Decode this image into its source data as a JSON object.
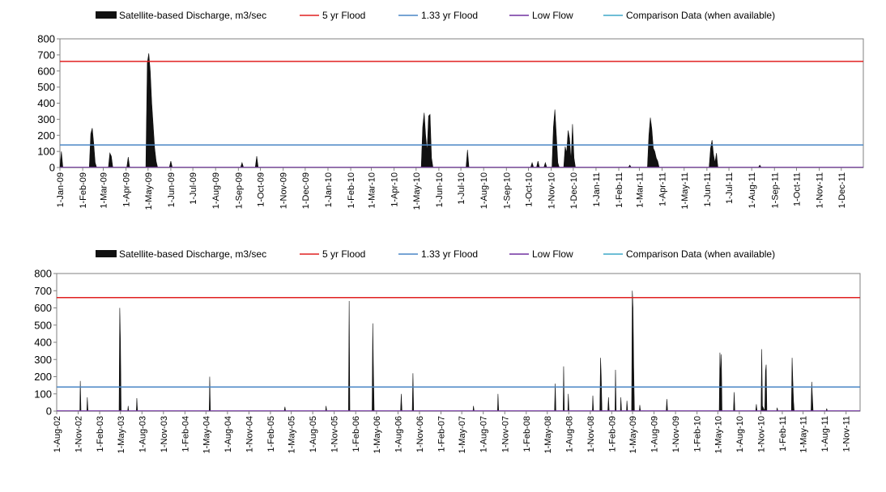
{
  "legend": {
    "discharge": "Satellite-based Discharge, m3/sec",
    "flood5": "5 yr Flood",
    "flood133": "1.33 yr Flood",
    "lowflow": "Low Flow",
    "comparison": "Comparison Data (when available)"
  },
  "colors": {
    "discharge": "#111111",
    "flood5": "#e02020",
    "flood133": "#4a86c5",
    "lowflow": "#7030a0",
    "comparison": "#3fa8c8",
    "axis": "#808080"
  },
  "chart_data": [
    {
      "type": "area",
      "ylim": [
        0,
        800
      ],
      "yticks": [
        0,
        100,
        200,
        300,
        400,
        500,
        600,
        700,
        800
      ],
      "xrange": [
        "2009-01-01",
        "2011-12-31"
      ],
      "xticks": [
        {
          "label": "1-Jan-09",
          "date": "2009-01-01"
        },
        {
          "label": "1-Feb-09",
          "date": "2009-02-01"
        },
        {
          "label": "1-Mar-09",
          "date": "2009-03-01"
        },
        {
          "label": "1-Apr-09",
          "date": "2009-04-01"
        },
        {
          "label": "1-May-09",
          "date": "2009-05-01"
        },
        {
          "label": "1-Jun-09",
          "date": "2009-06-01"
        },
        {
          "label": "1-Jul-09",
          "date": "2009-07-01"
        },
        {
          "label": "1-Aug-09",
          "date": "2009-08-01"
        },
        {
          "label": "1-Sep-09",
          "date": "2009-09-01"
        },
        {
          "label": "1-Oct-09",
          "date": "2009-10-01"
        },
        {
          "label": "1-Nov-09",
          "date": "2009-11-01"
        },
        {
          "label": "1-Dec-09",
          "date": "2009-12-01"
        },
        {
          "label": "1-Jan-10",
          "date": "2010-01-01"
        },
        {
          "label": "1-Feb-10",
          "date": "2010-02-01"
        },
        {
          "label": "1-Mar-10",
          "date": "2010-03-01"
        },
        {
          "label": "1-Apr-10",
          "date": "2010-04-01"
        },
        {
          "label": "1-May-10",
          "date": "2010-05-01"
        },
        {
          "label": "1-Jun-10",
          "date": "2010-06-01"
        },
        {
          "label": "1-Jul-10",
          "date": "2010-07-01"
        },
        {
          "label": "1-Aug-10",
          "date": "2010-08-01"
        },
        {
          "label": "1-Sep-10",
          "date": "2010-09-01"
        },
        {
          "label": "1-Oct-10",
          "date": "2010-10-01"
        },
        {
          "label": "1-Nov-10",
          "date": "2010-11-01"
        },
        {
          "label": "1-Dec-10",
          "date": "2010-12-01"
        },
        {
          "label": "1-Jan-11",
          "date": "2011-01-01"
        },
        {
          "label": "1-Feb-11",
          "date": "2011-02-01"
        },
        {
          "label": "1-Mar-11",
          "date": "2011-03-01"
        },
        {
          "label": "1-Apr-11",
          "date": "2011-04-01"
        },
        {
          "label": "1-May-11",
          "date": "2011-05-01"
        },
        {
          "label": "1-Jun-11",
          "date": "2011-06-01"
        },
        {
          "label": "1-Jul-11",
          "date": "2011-07-01"
        },
        {
          "label": "1-Aug-11",
          "date": "2011-08-01"
        },
        {
          "label": "1-Sep-11",
          "date": "2011-09-01"
        },
        {
          "label": "1-Oct-11",
          "date": "2011-10-01"
        },
        {
          "label": "1-Nov-11",
          "date": "2011-11-01"
        },
        {
          "label": "1-Dec-11",
          "date": "2011-12-01"
        }
      ],
      "flood5": 660,
      "flood133": 140,
      "lowflow": 2,
      "discharge": [
        [
          "2009-01-01",
          0
        ],
        [
          "2009-01-03",
          100
        ],
        [
          "2009-01-05",
          0
        ],
        [
          "2009-02-10",
          0
        ],
        [
          "2009-02-12",
          210
        ],
        [
          "2009-02-14",
          245
        ],
        [
          "2009-02-16",
          150
        ],
        [
          "2009-02-18",
          30
        ],
        [
          "2009-02-20",
          0
        ],
        [
          "2009-03-08",
          0
        ],
        [
          "2009-03-10",
          90
        ],
        [
          "2009-03-12",
          70
        ],
        [
          "2009-03-14",
          0
        ],
        [
          "2009-04-02",
          0
        ],
        [
          "2009-04-04",
          65
        ],
        [
          "2009-04-06",
          0
        ],
        [
          "2009-04-28",
          0
        ],
        [
          "2009-04-30",
          650
        ],
        [
          "2009-05-02",
          710
        ],
        [
          "2009-05-04",
          600
        ],
        [
          "2009-05-06",
          400
        ],
        [
          "2009-05-08",
          260
        ],
        [
          "2009-05-10",
          120
        ],
        [
          "2009-05-12",
          40
        ],
        [
          "2009-05-14",
          0
        ],
        [
          "2009-05-30",
          0
        ],
        [
          "2009-06-01",
          40
        ],
        [
          "2009-06-03",
          0
        ],
        [
          "2009-09-04",
          0
        ],
        [
          "2009-09-06",
          30
        ],
        [
          "2009-09-08",
          0
        ],
        [
          "2009-09-24",
          0
        ],
        [
          "2009-09-26",
          70
        ],
        [
          "2009-09-28",
          0
        ],
        [
          "2010-05-08",
          0
        ],
        [
          "2010-05-10",
          250
        ],
        [
          "2010-05-12",
          340
        ],
        [
          "2010-05-14",
          200
        ],
        [
          "2010-05-16",
          100
        ],
        [
          "2010-05-18",
          320
        ],
        [
          "2010-05-20",
          330
        ],
        [
          "2010-05-22",
          60
        ],
        [
          "2010-05-24",
          0
        ],
        [
          "2010-07-08",
          0
        ],
        [
          "2010-07-10",
          110
        ],
        [
          "2010-07-12",
          0
        ],
        [
          "2010-10-04",
          0
        ],
        [
          "2010-10-06",
          30
        ],
        [
          "2010-10-08",
          0
        ],
        [
          "2010-10-12",
          0
        ],
        [
          "2010-10-14",
          40
        ],
        [
          "2010-10-16",
          0
        ],
        [
          "2010-10-22",
          0
        ],
        [
          "2010-10-24",
          30
        ],
        [
          "2010-10-26",
          0
        ],
        [
          "2010-11-02",
          0
        ],
        [
          "2010-11-04",
          250
        ],
        [
          "2010-11-06",
          360
        ],
        [
          "2010-11-08",
          200
        ],
        [
          "2010-11-10",
          30
        ],
        [
          "2010-11-12",
          0
        ],
        [
          "2010-11-18",
          0
        ],
        [
          "2010-11-20",
          130
        ],
        [
          "2010-11-22",
          90
        ],
        [
          "2010-11-24",
          230
        ],
        [
          "2010-11-26",
          180
        ],
        [
          "2010-11-28",
          40
        ],
        [
          "2010-11-30",
          270
        ],
        [
          "2010-12-02",
          60
        ],
        [
          "2010-12-04",
          0
        ],
        [
          "2011-02-14",
          0
        ],
        [
          "2011-02-16",
          15
        ],
        [
          "2011-02-18",
          0
        ],
        [
          "2011-03-12",
          0
        ],
        [
          "2011-03-14",
          200
        ],
        [
          "2011-03-16",
          310
        ],
        [
          "2011-03-18",
          240
        ],
        [
          "2011-03-20",
          120
        ],
        [
          "2011-03-22",
          100
        ],
        [
          "2011-03-24",
          60
        ],
        [
          "2011-03-26",
          40
        ],
        [
          "2011-03-28",
          0
        ],
        [
          "2011-06-04",
          0
        ],
        [
          "2011-06-06",
          120
        ],
        [
          "2011-06-08",
          170
        ],
        [
          "2011-06-10",
          80
        ],
        [
          "2011-06-12",
          30
        ],
        [
          "2011-06-14",
          90
        ],
        [
          "2011-06-16",
          0
        ],
        [
          "2011-08-10",
          0
        ],
        [
          "2011-08-12",
          15
        ],
        [
          "2011-08-14",
          0
        ],
        [
          "2011-12-31",
          0
        ]
      ]
    },
    {
      "type": "area",
      "ylim": [
        0,
        800
      ],
      "yticks": [
        0,
        100,
        200,
        300,
        400,
        500,
        600,
        700,
        800
      ],
      "xrange": [
        "2002-08-01",
        "2011-12-31"
      ],
      "xticks": [
        {
          "label": "1-Aug-02",
          "date": "2002-08-01"
        },
        {
          "label": "1-Nov-02",
          "date": "2002-11-01"
        },
        {
          "label": "1-Feb-03",
          "date": "2003-02-01"
        },
        {
          "label": "1-May-03",
          "date": "2003-05-01"
        },
        {
          "label": "1-Aug-03",
          "date": "2003-08-01"
        },
        {
          "label": "1-Nov-03",
          "date": "2003-11-01"
        },
        {
          "label": "1-Feb-04",
          "date": "2004-02-01"
        },
        {
          "label": "1-May-04",
          "date": "2004-05-01"
        },
        {
          "label": "1-Aug-04",
          "date": "2004-08-01"
        },
        {
          "label": "1-Nov-04",
          "date": "2004-11-01"
        },
        {
          "label": "1-Feb-05",
          "date": "2005-02-01"
        },
        {
          "label": "1-May-05",
          "date": "2005-05-01"
        },
        {
          "label": "1-Aug-05",
          "date": "2005-08-01"
        },
        {
          "label": "1-Nov-05",
          "date": "2005-11-01"
        },
        {
          "label": "1-Feb-06",
          "date": "2006-02-01"
        },
        {
          "label": "1-May-06",
          "date": "2006-05-01"
        },
        {
          "label": "1-Aug-06",
          "date": "2006-08-01"
        },
        {
          "label": "1-Nov-06",
          "date": "2006-11-01"
        },
        {
          "label": "1-Feb-07",
          "date": "2007-02-01"
        },
        {
          "label": "1-May-07",
          "date": "2007-05-01"
        },
        {
          "label": "1-Aug-07",
          "date": "2007-08-01"
        },
        {
          "label": "1-Nov-07",
          "date": "2007-11-01"
        },
        {
          "label": "1-Feb-08",
          "date": "2008-02-01"
        },
        {
          "label": "1-May-08",
          "date": "2008-05-01"
        },
        {
          "label": "1-Aug-08",
          "date": "2008-08-01"
        },
        {
          "label": "1-Nov-08",
          "date": "2008-11-01"
        },
        {
          "label": "1-Feb-09",
          "date": "2009-02-01"
        },
        {
          "label": "1-May-09",
          "date": "2009-05-01"
        },
        {
          "label": "1-Aug-09",
          "date": "2009-08-01"
        },
        {
          "label": "1-Nov-09",
          "date": "2009-11-01"
        },
        {
          "label": "1-Feb-10",
          "date": "2010-02-01"
        },
        {
          "label": "1-May-10",
          "date": "2010-05-01"
        },
        {
          "label": "1-Aug-10",
          "date": "2010-08-01"
        },
        {
          "label": "1-Nov-10",
          "date": "2010-11-01"
        },
        {
          "label": "1-Feb-11",
          "date": "2011-02-01"
        },
        {
          "label": "1-May-11",
          "date": "2011-05-01"
        },
        {
          "label": "1-Aug-11",
          "date": "2011-08-01"
        },
        {
          "label": "1-Nov-11",
          "date": "2011-11-01"
        }
      ],
      "flood5": 660,
      "flood133": 140,
      "lowflow": 2,
      "discharge": [
        [
          "2002-08-01",
          0
        ],
        [
          "2002-11-08",
          0
        ],
        [
          "2002-11-10",
          175
        ],
        [
          "2002-11-13",
          0
        ],
        [
          "2002-12-08",
          0
        ],
        [
          "2002-12-10",
          80
        ],
        [
          "2002-12-13",
          0
        ],
        [
          "2003-04-25",
          0
        ],
        [
          "2003-04-28",
          600
        ],
        [
          "2003-05-01",
          400
        ],
        [
          "2003-05-04",
          0
        ],
        [
          "2003-06-01",
          0
        ],
        [
          "2003-06-03",
          30
        ],
        [
          "2003-06-05",
          0
        ],
        [
          "2003-07-08",
          0
        ],
        [
          "2003-07-10",
          75
        ],
        [
          "2003-07-13",
          0
        ],
        [
          "2004-05-15",
          0
        ],
        [
          "2004-05-17",
          200
        ],
        [
          "2004-05-20",
          0
        ],
        [
          "2005-04-01",
          0
        ],
        [
          "2005-04-04",
          25
        ],
        [
          "2005-04-07",
          0
        ],
        [
          "2005-09-25",
          0
        ],
        [
          "2005-09-27",
          30
        ],
        [
          "2005-09-30",
          0
        ],
        [
          "2006-01-01",
          0
        ],
        [
          "2006-01-04",
          640
        ],
        [
          "2006-01-07",
          0
        ],
        [
          "2006-04-12",
          0
        ],
        [
          "2006-04-15",
          510
        ],
        [
          "2006-04-18",
          220
        ],
        [
          "2006-04-21",
          0
        ],
        [
          "2006-08-12",
          0
        ],
        [
          "2006-08-15",
          100
        ],
        [
          "2006-08-18",
          0
        ],
        [
          "2006-10-01",
          0
        ],
        [
          "2006-10-04",
          220
        ],
        [
          "2006-10-07",
          0
        ],
        [
          "2007-06-18",
          0
        ],
        [
          "2007-06-20",
          30
        ],
        [
          "2007-06-23",
          0
        ],
        [
          "2007-10-01",
          0
        ],
        [
          "2007-10-03",
          100
        ],
        [
          "2007-10-06",
          0
        ],
        [
          "2008-06-01",
          0
        ],
        [
          "2008-06-04",
          160
        ],
        [
          "2008-06-07",
          0
        ],
        [
          "2008-07-08",
          0
        ],
        [
          "2008-07-10",
          260
        ],
        [
          "2008-07-13",
          0
        ],
        [
          "2008-07-28",
          0
        ],
        [
          "2008-07-30",
          100
        ],
        [
          "2008-08-02",
          0
        ],
        [
          "2008-11-10",
          0
        ],
        [
          "2008-11-12",
          90
        ],
        [
          "2008-11-15",
          0
        ],
        [
          "2008-12-12",
          0
        ],
        [
          "2008-12-15",
          310
        ],
        [
          "2008-12-18",
          200
        ],
        [
          "2008-12-21",
          0
        ],
        [
          "2009-01-15",
          0
        ],
        [
          "2009-01-18",
          80
        ],
        [
          "2009-01-21",
          0
        ],
        [
          "2009-02-15",
          0
        ],
        [
          "2009-02-17",
          240
        ],
        [
          "2009-02-20",
          0
        ],
        [
          "2009-03-10",
          0
        ],
        [
          "2009-03-12",
          80
        ],
        [
          "2009-03-15",
          0
        ],
        [
          "2009-04-05",
          0
        ],
        [
          "2009-04-07",
          60
        ],
        [
          "2009-04-10",
          0
        ],
        [
          "2009-04-27",
          0
        ],
        [
          "2009-04-30",
          700
        ],
        [
          "2009-05-03",
          600
        ],
        [
          "2009-05-06",
          250
        ],
        [
          "2009-05-09",
          0
        ],
        [
          "2009-05-30",
          0
        ],
        [
          "2009-06-01",
          35
        ],
        [
          "2009-06-04",
          0
        ],
        [
          "2009-09-22",
          0
        ],
        [
          "2009-09-25",
          70
        ],
        [
          "2009-09-28",
          0
        ],
        [
          "2010-05-07",
          0
        ],
        [
          "2010-05-10",
          340
        ],
        [
          "2010-05-13",
          200
        ],
        [
          "2010-05-16",
          330
        ],
        [
          "2010-05-19",
          0
        ],
        [
          "2010-07-07",
          0
        ],
        [
          "2010-07-10",
          110
        ],
        [
          "2010-07-13",
          0
        ],
        [
          "2010-10-10",
          0
        ],
        [
          "2010-10-13",
          40
        ],
        [
          "2010-10-16",
          0
        ],
        [
          "2010-11-02",
          0
        ],
        [
          "2010-11-05",
          360
        ],
        [
          "2010-11-08",
          30
        ],
        [
          "2010-11-18",
          0
        ],
        [
          "2010-11-21",
          230
        ],
        [
          "2010-11-24",
          270
        ],
        [
          "2010-11-27",
          0
        ],
        [
          "2011-01-08",
          0
        ],
        [
          "2011-01-10",
          20
        ],
        [
          "2011-01-13",
          0
        ],
        [
          "2011-03-12",
          0
        ],
        [
          "2011-03-15",
          310
        ],
        [
          "2011-03-18",
          180
        ],
        [
          "2011-03-21",
          60
        ],
        [
          "2011-03-24",
          0
        ],
        [
          "2011-06-04",
          0
        ],
        [
          "2011-06-07",
          170
        ],
        [
          "2011-06-10",
          80
        ],
        [
          "2011-06-13",
          0
        ],
        [
          "2011-08-08",
          0
        ],
        [
          "2011-08-10",
          15
        ],
        [
          "2011-08-13",
          0
        ],
        [
          "2011-12-31",
          0
        ]
      ]
    }
  ]
}
